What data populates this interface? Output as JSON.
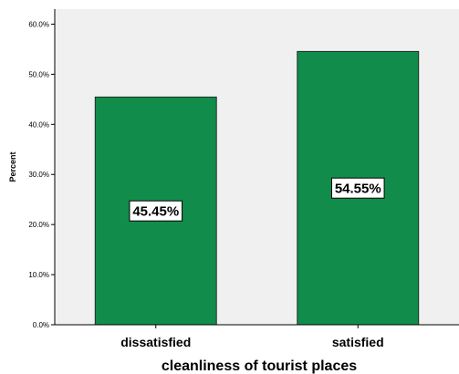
{
  "chart_data": {
    "type": "bar",
    "categories": [
      "dissatisfied",
      "satisfied"
    ],
    "values": [
      45.45,
      54.55
    ],
    "data_labels": [
      "45.45%",
      "54.55%"
    ],
    "xlabel": "cleanliness of tourist places",
    "ylabel": "Percent",
    "ylim": [
      0,
      63
    ],
    "yticks": [
      0,
      10,
      20,
      30,
      40,
      50,
      60
    ],
    "ytick_labels": [
      "0.0%",
      "10.0%",
      "20.0%",
      "30.0%",
      "40.0%",
      "50.0%",
      "60.0%"
    ],
    "grid": false,
    "legend": "none",
    "colors": {
      "bar_fill": "#118c4b",
      "bar_stroke": "#1f2f26",
      "plot_background": "#f0f0f0",
      "label_box": "#ffffff"
    }
  }
}
